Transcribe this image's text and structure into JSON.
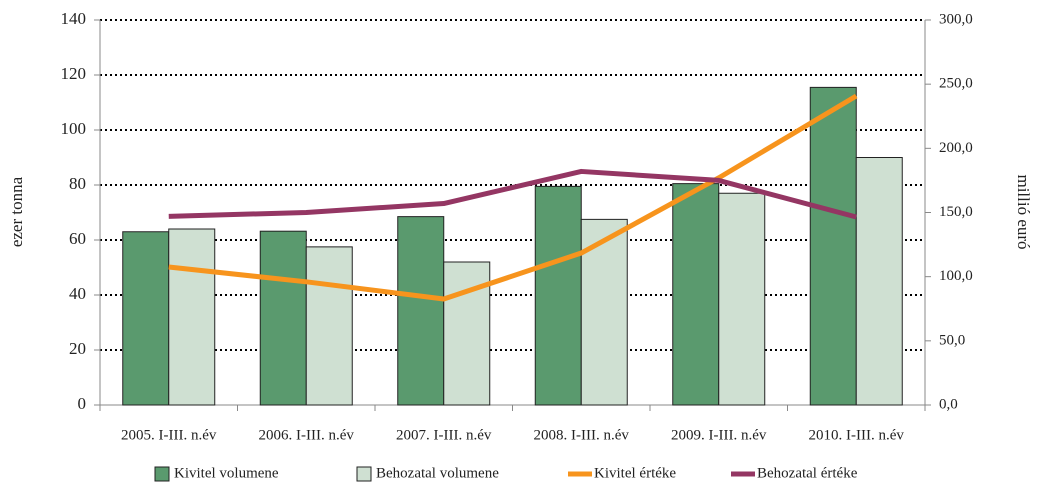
{
  "chart_data": {
    "type": "bar_line",
    "categories": [
      "2005. I-III. n.év",
      "2006. I-III. n.év",
      "2007. I-III. n.év",
      "2008. I-III. n.év",
      "2009. I-III. n.év",
      "2010. I-III. n.év"
    ],
    "series": [
      {
        "name": "Kivitel volumene",
        "type": "bar",
        "color": "#5a9a6e",
        "values": [
          63,
          63.2,
          68.5,
          79.5,
          80.5,
          115.5
        ]
      },
      {
        "name": "Behozatal volumene",
        "type": "bar",
        "color": "#cfe0d2",
        "values": [
          64,
          57.5,
          52,
          67.5,
          77,
          90
        ]
      },
      {
        "name": "Kivitel értéke",
        "type": "line",
        "axis": "y2",
        "color": "#f7941d",
        "values": [
          107.5,
          96,
          82.6,
          118.4,
          177,
          240.8
        ]
      },
      {
        "name": "Behozatal értéke",
        "type": "line",
        "axis": "y2",
        "color": "#943663",
        "values": [
          147,
          150,
          157,
          182,
          175,
          146.5
        ]
      }
    ],
    "ylabel": "ezer tonna",
    "y2label": "millió euró",
    "ylim": [
      0,
      140
    ],
    "yticks": [
      0,
      20,
      40,
      60,
      80,
      100,
      120,
      140
    ],
    "y2lim": [
      0,
      300
    ],
    "y2ticks": [
      {
        "value": 0,
        "label": "0,0"
      },
      {
        "value": 50,
        "label": "50,0"
      },
      {
        "value": 100,
        "label": "100,0"
      },
      {
        "value": 150,
        "label": "150,0"
      },
      {
        "value": 200,
        "label": "200,0"
      },
      {
        "value": 250,
        "label": "250,0"
      },
      {
        "value": 300,
        "label": "300,0"
      }
    ],
    "grid": true,
    "legend": "bottom"
  }
}
